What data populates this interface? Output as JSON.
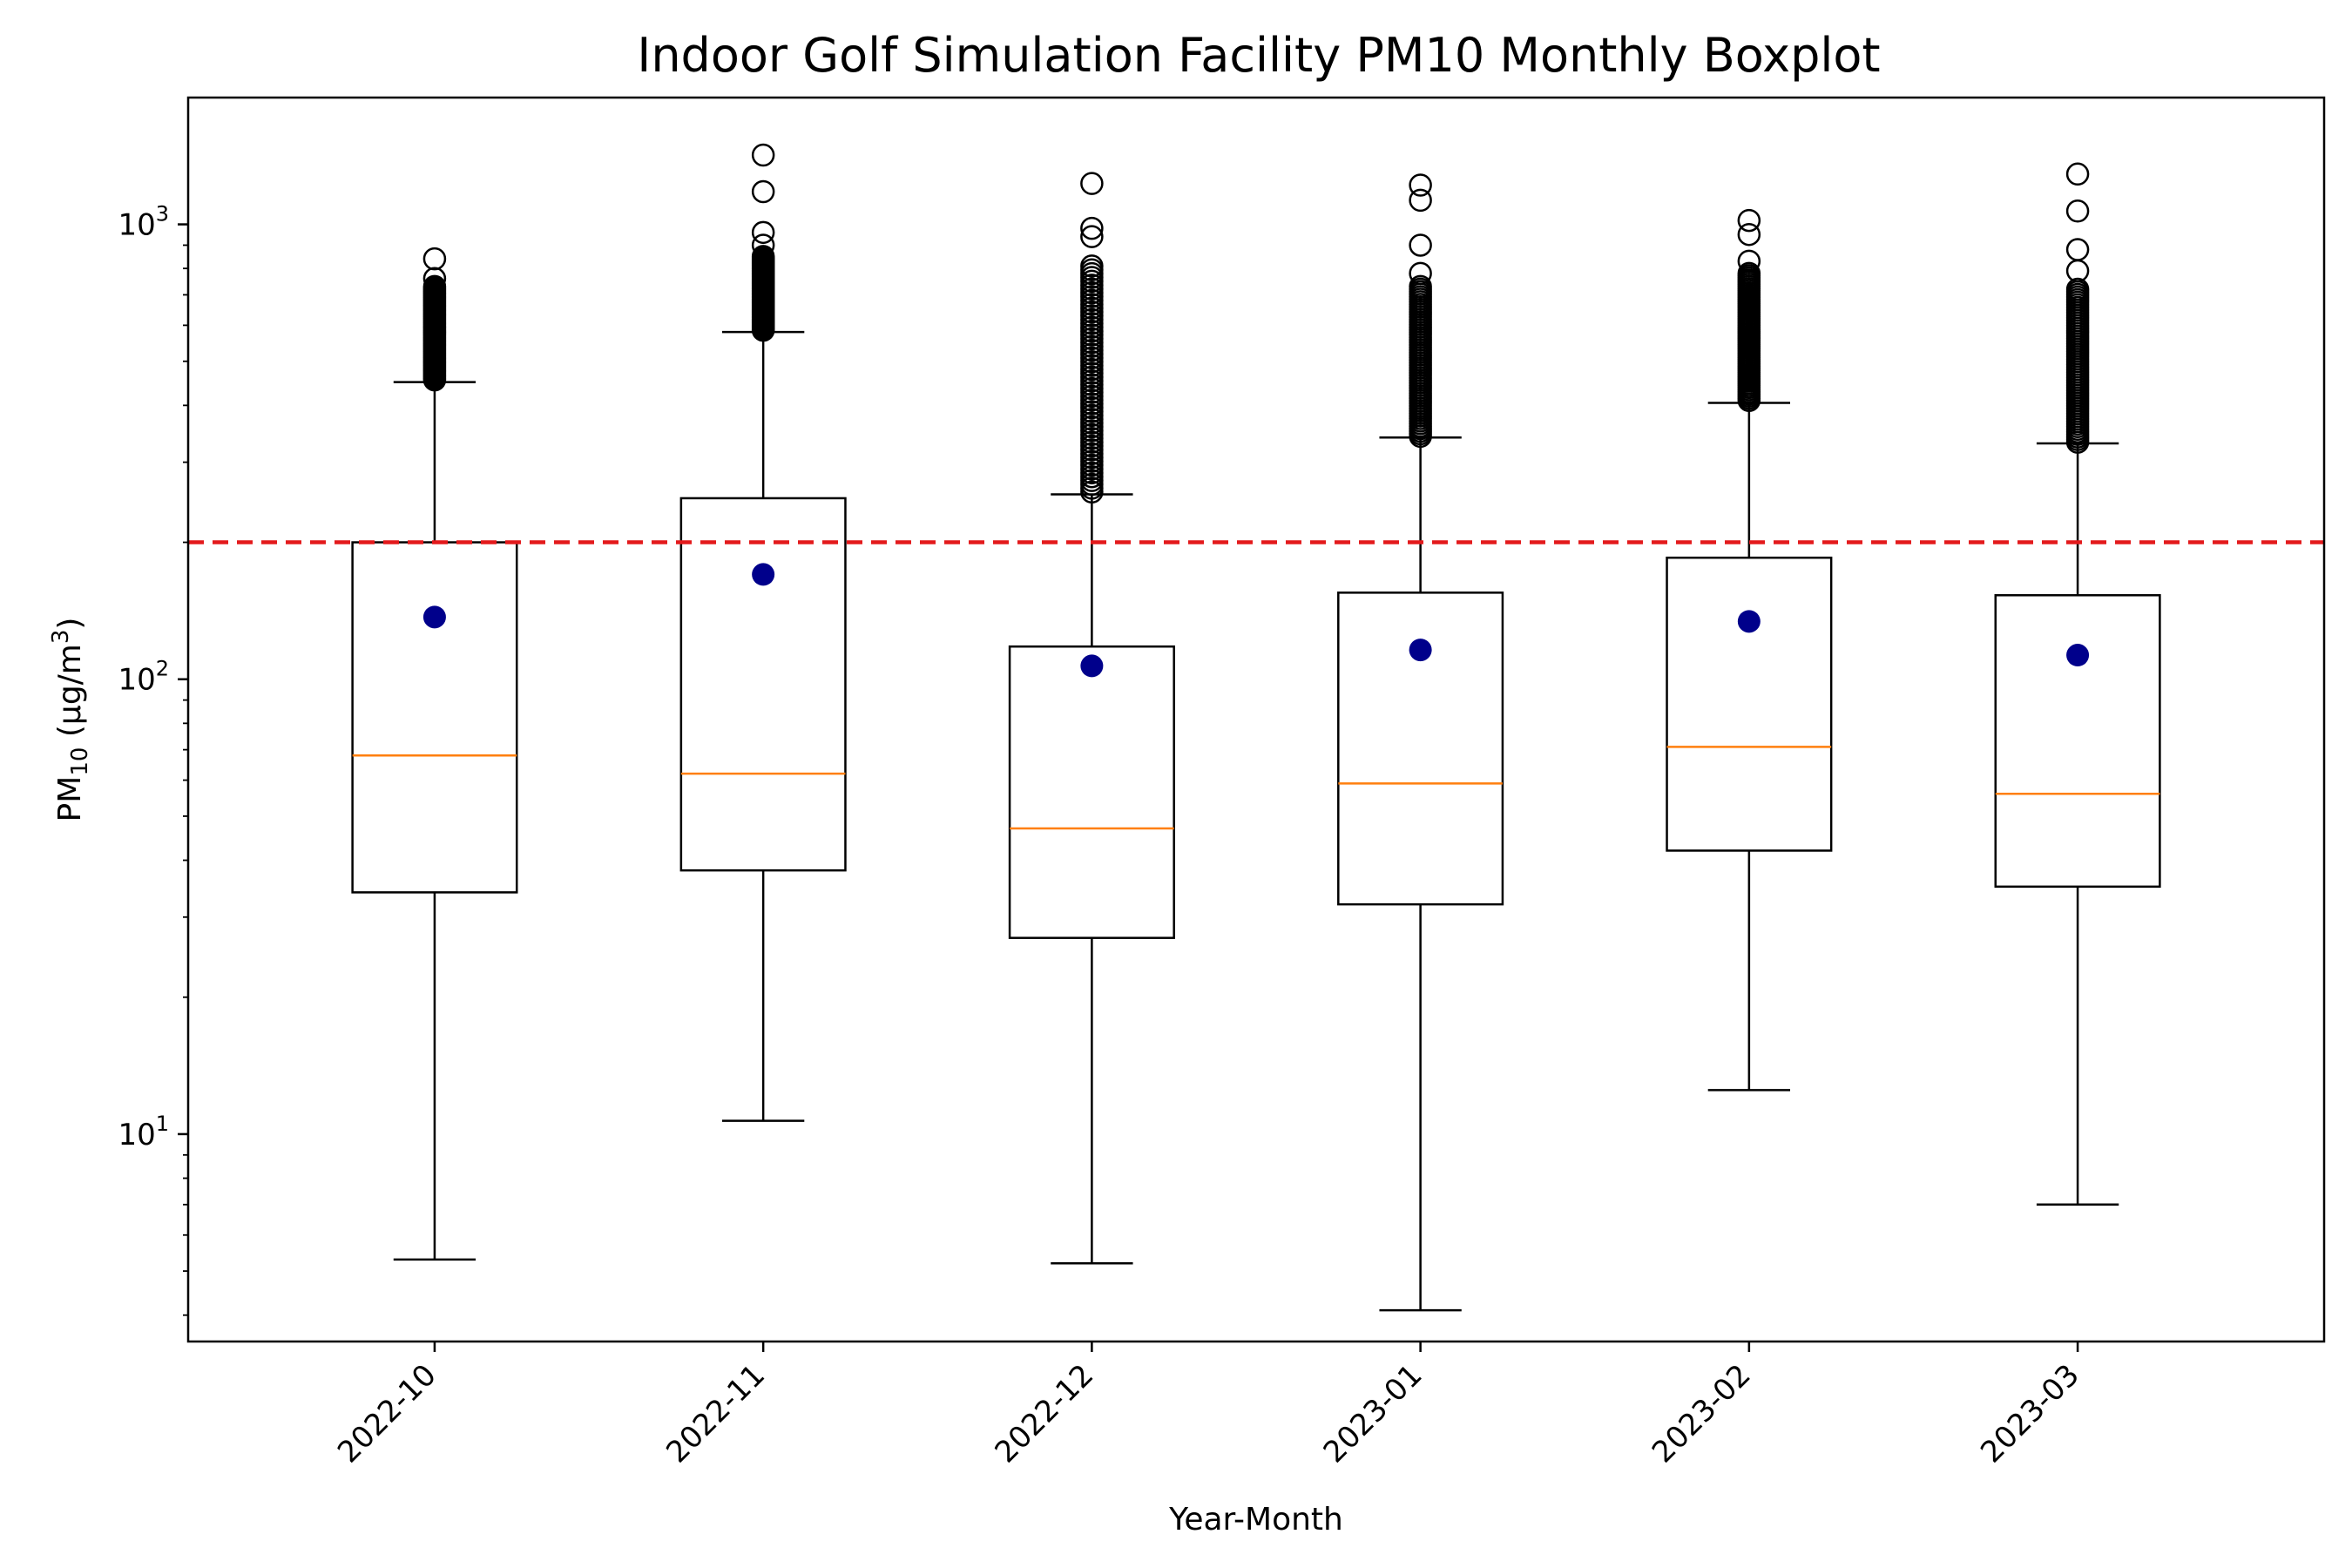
{
  "chart_data": {
    "type": "boxplot",
    "title": "Indoor Golf Simulation Facility PM10 Monthly Boxplot",
    "xlabel": "Year-Month",
    "ylabel": {
      "base": "PM",
      "sub": "10",
      "unit_pre": " (μg/m",
      "unit_sup": "3",
      "unit_post": ")"
    },
    "yscale": "log",
    "ylim": [
      3.5,
      1900
    ],
    "y_ticks": [
      {
        "value": 10,
        "base": "10",
        "exp": "1"
      },
      {
        "value": 100,
        "base": "10",
        "exp": "2"
      },
      {
        "value": 1000,
        "base": "10",
        "exp": "3"
      }
    ],
    "grid": false,
    "reference_line": {
      "value": 200,
      "color": "#e31a1c",
      "style": "dashed"
    },
    "colors": {
      "box": "#000000",
      "median": "#ff7f0e",
      "mean_marker": "#00008b",
      "outlier": "#000000"
    },
    "categories": [
      "2022-10",
      "2022-11",
      "2022-12",
      "2023-01",
      "2023-02",
      "2023-03"
    ],
    "boxes": [
      {
        "category": "2022-10",
        "whisker_low": 5.3,
        "q1": 34,
        "median": 68,
        "q3": 200,
        "whisker_high": 450,
        "mean": 137,
        "outliers_range": [
          455,
          730
        ],
        "outliers_top": [
          760,
          840
        ]
      },
      {
        "category": "2022-11",
        "whisker_low": 10.7,
        "q1": 38,
        "median": 62,
        "q3": 250,
        "whisker_high": 580,
        "mean": 170,
        "outliers_range": [
          585,
          850
        ],
        "outliers_top": [
          900,
          960,
          1180,
          1420
        ]
      },
      {
        "category": "2022-12",
        "whisker_low": 5.2,
        "q1": 27,
        "median": 47,
        "q3": 118,
        "whisker_high": 255,
        "mean": 107,
        "outliers_range": [
          258,
          810
        ],
        "outliers_top": [
          940,
          980,
          1230
        ]
      },
      {
        "category": "2023-01",
        "whisker_low": 4.1,
        "q1": 32,
        "median": 59,
        "q3": 155,
        "whisker_high": 340,
        "mean": 116,
        "outliers_range": [
          342,
          730
        ],
        "outliers_top": [
          780,
          900,
          1130,
          1220
        ]
      },
      {
        "category": "2023-02",
        "whisker_low": 12.5,
        "q1": 42,
        "median": 71,
        "q3": 185,
        "whisker_high": 405,
        "mean": 134,
        "outliers_range": [
          410,
          780
        ],
        "outliers_top": [
          830,
          950,
          1020
        ]
      },
      {
        "category": "2023-03",
        "whisker_low": 7,
        "q1": 35,
        "median": 56,
        "q3": 153,
        "whisker_high": 330,
        "mean": 113,
        "outliers_range": [
          332,
          720
        ],
        "outliers_top": [
          790,
          880,
          1070,
          1290
        ]
      }
    ]
  }
}
